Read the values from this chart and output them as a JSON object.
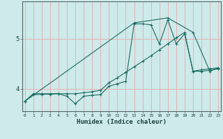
{
  "xlabel": "Humidex (Indice chaleur)",
  "background_color": "#ceeaea",
  "grid_color": "#e8aaaa",
  "line_color": "#1a6b60",
  "x_ticks": [
    0,
    1,
    2,
    3,
    4,
    5,
    6,
    7,
    8,
    9,
    10,
    11,
    12,
    13,
    14,
    15,
    16,
    17,
    18,
    19,
    20,
    21,
    22,
    23
  ],
  "y_ticks": [
    4,
    5
  ],
  "ylim": [
    3.55,
    5.75
  ],
  "xlim": [
    -0.3,
    23.3
  ],
  "series1_x": [
    0,
    1,
    2,
    3,
    4,
    5,
    6,
    7,
    8,
    9,
    10,
    11,
    12,
    13,
    14,
    15,
    16,
    17,
    18,
    19,
    20,
    21,
    22,
    23
  ],
  "series1_y": [
    3.75,
    3.9,
    3.9,
    3.9,
    3.9,
    3.85,
    3.7,
    3.85,
    3.87,
    3.88,
    4.05,
    4.1,
    4.15,
    5.3,
    5.3,
    5.28,
    4.9,
    5.38,
    4.9,
    5.1,
    4.35,
    4.35,
    4.37,
    4.4
  ],
  "series2_x": [
    0,
    1,
    2,
    3,
    4,
    5,
    6,
    7,
    8,
    9,
    10,
    11,
    12,
    13,
    14,
    15,
    16,
    17,
    18,
    19,
    20,
    21,
    22,
    23
  ],
  "series2_y": [
    3.75,
    3.88,
    3.89,
    3.89,
    3.9,
    3.9,
    3.9,
    3.92,
    3.94,
    3.97,
    4.12,
    4.22,
    4.33,
    4.44,
    4.55,
    4.66,
    4.78,
    4.9,
    5.02,
    5.13,
    4.35,
    4.38,
    4.4,
    4.42
  ],
  "series3_x": [
    0,
    13,
    17,
    20,
    22,
    23
  ],
  "series3_y": [
    3.75,
    5.32,
    5.42,
    5.13,
    4.35,
    4.42
  ]
}
